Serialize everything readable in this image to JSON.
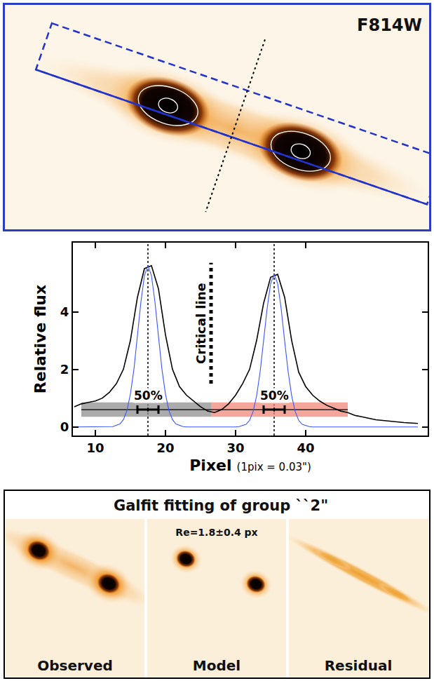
{
  "top_panel": {
    "label": "F814W"
  },
  "chart_data": {
    "type": "line",
    "x_label": "Pixel",
    "x_label_note": "(1pix = 0.03\")",
    "y_label": "Relative flux",
    "xlim": [
      6.8,
      57.4
    ],
    "xticks": [
      10,
      20,
      30,
      40
    ],
    "ylim": [
      -0.3,
      6.4
    ],
    "yticks": [
      0,
      2,
      4
    ],
    "grid": false,
    "series": [
      {
        "color": "#000000",
        "x": [
          7,
          8,
          9,
          10,
          11,
          12,
          13,
          14,
          15,
          16,
          17,
          18,
          19,
          20,
          21,
          22,
          23,
          24,
          25,
          26,
          27,
          28,
          29,
          30,
          31,
          32,
          33,
          34,
          35,
          36,
          37,
          38,
          39,
          40,
          41,
          42,
          43,
          44,
          45,
          46,
          47,
          48,
          49,
          50,
          52,
          54,
          56
        ],
        "values": [
          0.7,
          0.8,
          0.85,
          0.9,
          1.0,
          1.2,
          1.5,
          2.0,
          3.0,
          4.5,
          5.5,
          5.6,
          4.8,
          3.2,
          2.0,
          1.4,
          1.1,
          0.9,
          0.7,
          0.55,
          0.5,
          0.6,
          0.8,
          1.1,
          1.5,
          2.0,
          3.0,
          4.3,
          5.2,
          5.3,
          4.5,
          3.0,
          1.9,
          1.4,
          1.1,
          0.9,
          0.75,
          0.65,
          0.55,
          0.5,
          0.4,
          0.35,
          0.3,
          0.25,
          0.2,
          0.15,
          0.12
        ]
      },
      {
        "color": "#3a55ff",
        "x": [
          7,
          12,
          12.5,
          13.5,
          14,
          14.5,
          15,
          15.5,
          16,
          16.5,
          17,
          17.5,
          18,
          18.5,
          19,
          19.5,
          20,
          20.5,
          21,
          21.5,
          22.5,
          23,
          30,
          30.5,
          31.5,
          32,
          32.5,
          33,
          33.5,
          34,
          34.5,
          35,
          35.5,
          36,
          36.5,
          37,
          37.5,
          38,
          38.5,
          39,
          39.5,
          40.5,
          41,
          56
        ],
        "values": [
          0,
          0,
          0.01,
          0.1,
          0.25,
          0.56,
          1.14,
          2.0,
          3.15,
          4.34,
          5.26,
          5.6,
          5.26,
          4.34,
          3.15,
          2.0,
          1.14,
          0.56,
          0.25,
          0.1,
          0.01,
          0,
          0,
          0.01,
          0.09,
          0.23,
          0.53,
          1.08,
          1.91,
          2.98,
          4.11,
          4.98,
          5.3,
          4.98,
          4.11,
          2.98,
          1.91,
          1.08,
          0.53,
          0.23,
          0.09,
          0.01,
          0,
          0
        ]
      }
    ],
    "peak_lines": [
      17.5,
      35.5
    ],
    "critical_line": {
      "label": "Critical line",
      "x": 26.5,
      "y": [
        1.5,
        5.7
      ]
    },
    "regions": [
      {
        "label": "50%",
        "color": "#8f8f8f",
        "x": [
          8,
          26.5
        ],
        "y": [
          0.35,
          0.85
        ],
        "line_y": 0.6,
        "center": 17.5,
        "error": 1.5,
        "label_y": 1.1
      },
      {
        "label": "50%",
        "color": "#f2887a",
        "x": [
          26.5,
          46
        ],
        "y": [
          0.35,
          0.85
        ],
        "line_y": 0.6,
        "center": 35.5,
        "error": 1.5,
        "label_y": 1.1
      }
    ]
  },
  "bottom_panel": {
    "title": "Galfit fitting of group ``2\"",
    "note": "Re=1.8±0.4 px",
    "captions": [
      "Observed",
      "Model",
      "Residual"
    ]
  }
}
